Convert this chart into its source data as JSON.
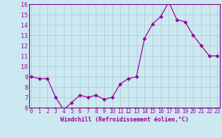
{
  "x": [
    0,
    1,
    2,
    3,
    4,
    5,
    6,
    7,
    8,
    9,
    10,
    11,
    12,
    13,
    14,
    15,
    16,
    17,
    18,
    19,
    20,
    21,
    22,
    23
  ],
  "y": [
    9.0,
    8.8,
    8.8,
    7.0,
    5.8,
    6.5,
    7.2,
    7.0,
    7.2,
    6.8,
    7.0,
    8.3,
    8.8,
    9.0,
    12.7,
    14.1,
    14.8,
    16.2,
    14.5,
    14.3,
    13.0,
    12.0,
    11.0,
    11.0
  ],
  "ylim": [
    6,
    16
  ],
  "yticks": [
    6,
    7,
    8,
    9,
    10,
    11,
    12,
    13,
    14,
    15,
    16
  ],
  "xticks": [
    0,
    1,
    2,
    3,
    4,
    5,
    6,
    7,
    8,
    9,
    10,
    11,
    12,
    13,
    14,
    15,
    16,
    17,
    18,
    19,
    20,
    21,
    22,
    23
  ],
  "xlabel": "Windchill (Refroidissement éolien,°C)",
  "line_color": "#990099",
  "marker": "D",
  "marker_size": 2.5,
  "linewidth": 0.9,
  "bg_color": "#cce8f0",
  "grid_color": "#b0cdd6",
  "spine_color": "#7a007a",
  "tick_color": "#990099",
  "label_fontsize": 5.5,
  "xlabel_fontsize": 6.0
}
